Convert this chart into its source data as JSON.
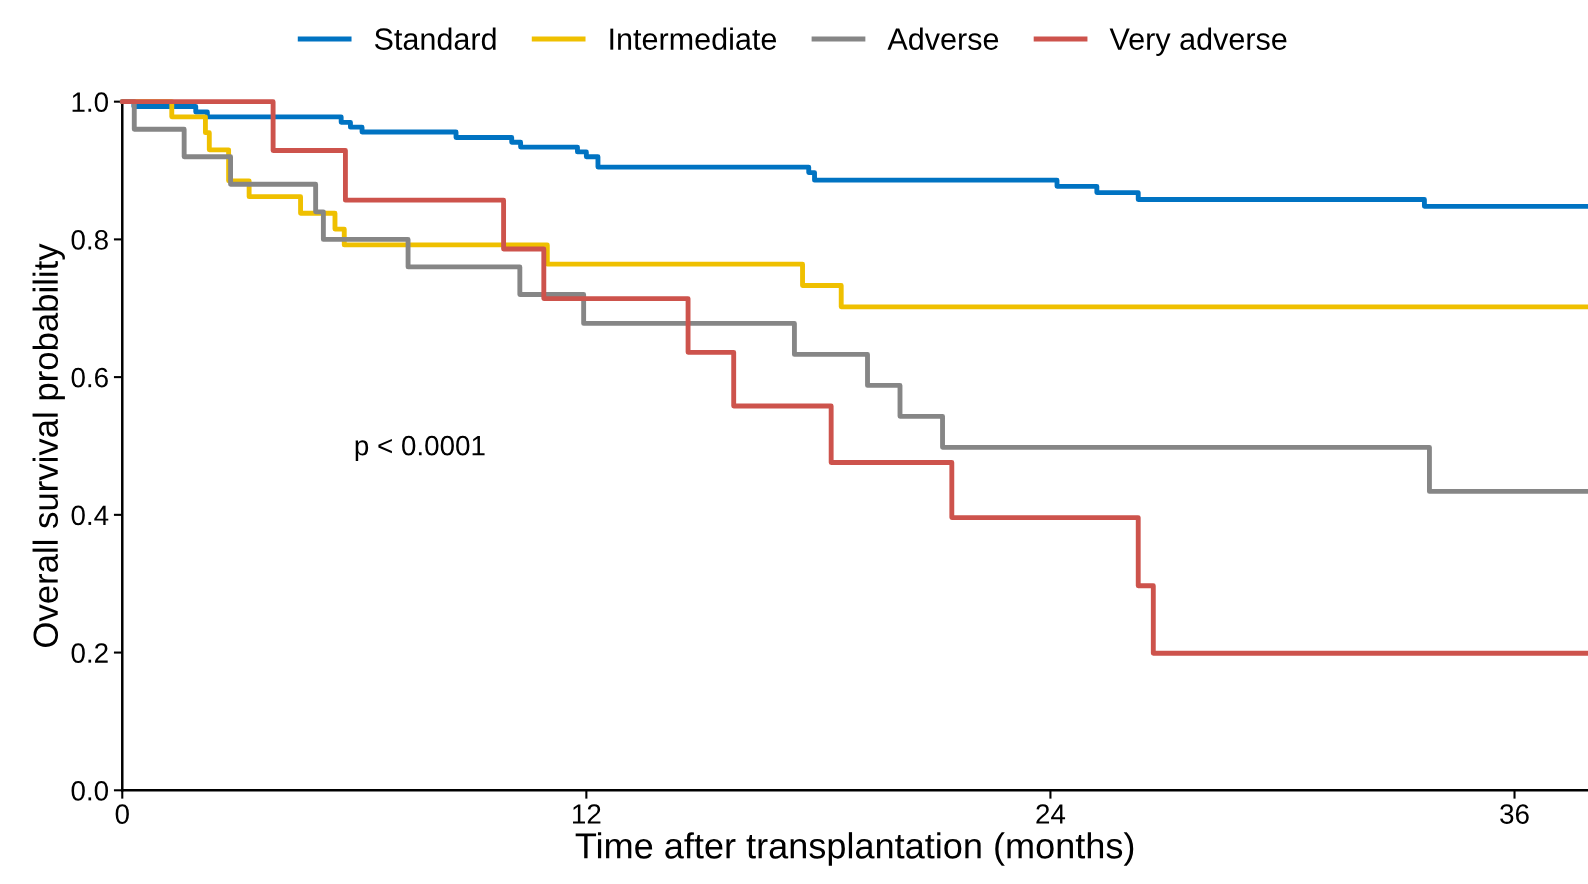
{
  "chart_data": {
    "type": "step",
    "xlabel": "Time after transplantation (months)",
    "ylabel": "Overall survival probability",
    "xlim": [
      0,
      37.9
    ],
    "ylim": [
      0,
      1
    ],
    "xticks": [
      0,
      12,
      24,
      36
    ],
    "yticks": [
      {
        "value": 0,
        "label": "0.0"
      },
      0.2,
      0.4,
      0.6,
      0.8,
      {
        "value": 1,
        "label": "1.0"
      }
    ],
    "grid": false,
    "legend": "top",
    "line_style": "solid",
    "marker": "none",
    "annotations": [
      "p < 0.0001"
    ],
    "series": [
      {
        "name": "Standard",
        "color": "#0073c2",
        "x": [
          0,
          0.3,
          1.9,
          2.2,
          5.66,
          5.9,
          6.2,
          8.63,
          10.07,
          10.3,
          11.77,
          12.0,
          12.3,
          17.75,
          17.9,
          24.17,
          25.2,
          26.27,
          33.67,
          37.9
        ],
        "values": [
          1.0,
          0.993,
          0.985,
          0.978,
          0.97,
          0.963,
          0.956,
          0.948,
          0.941,
          0.934,
          0.927,
          0.92,
          0.905,
          0.897,
          0.886,
          0.877,
          0.868,
          0.858,
          0.848,
          0.848
        ]
      },
      {
        "name": "Intermediate",
        "color": "#efc000",
        "x": [
          0,
          1.28,
          2.15,
          2.25,
          2.75,
          3.28,
          4.61,
          5.5,
          5.74,
          10.99,
          17.59,
          18.59,
          37.9
        ],
        "values": [
          1.0,
          0.978,
          0.955,
          0.93,
          0.885,
          0.862,
          0.838,
          0.815,
          0.792,
          0.764,
          0.733,
          0.702,
          0.702
        ]
      },
      {
        "name": "Adverse",
        "color": "#868686",
        "x": [
          0,
          0.31,
          1.6,
          2.8,
          5.0,
          5.2,
          7.39,
          10.28,
          11.93,
          17.38,
          19.27,
          20.11,
          21.21,
          33.8,
          37.9
        ],
        "values": [
          1.0,
          0.96,
          0.92,
          0.88,
          0.84,
          0.8,
          0.76,
          0.72,
          0.678,
          0.633,
          0.588,
          0.543,
          0.498,
          0.434,
          0.434
        ]
      },
      {
        "name": "Very adverse",
        "color": "#cd534c",
        "x": [
          0,
          3.9,
          5.77,
          9.86,
          10.9,
          14.63,
          15.81,
          18.33,
          21.45,
          26.27,
          26.66,
          37.9
        ],
        "values": [
          1.0,
          0.929,
          0.857,
          0.786,
          0.714,
          0.636,
          0.558,
          0.476,
          0.396,
          0.297,
          0.199,
          0.199
        ]
      }
    ]
  }
}
